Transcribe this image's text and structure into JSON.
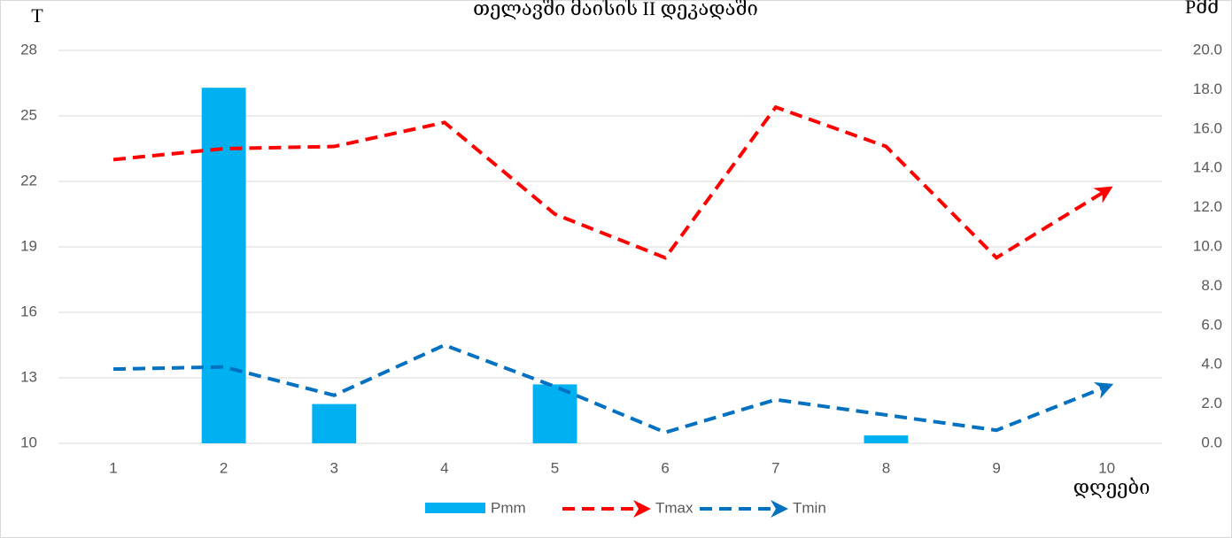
{
  "chart_data": {
    "type": "bar",
    "title": "თელავში მაისის II დეკადაში",
    "y_label": "T",
    "y2_label": "Pმმ",
    "x_label": "დღეები",
    "categories": [
      "1",
      "2",
      "3",
      "4",
      "5",
      "6",
      "7",
      "8",
      "9",
      "10"
    ],
    "series": [
      {
        "name": "Pmm",
        "type": "bar",
        "axis": "y2",
        "color": "#00b0f0",
        "values": [
          0,
          18.1,
          2.0,
          0,
          3.0,
          0,
          0,
          0.4,
          0,
          0
        ]
      },
      {
        "name": "Tmax",
        "type": "line",
        "color": "#ff0000",
        "values": [
          23.0,
          23.5,
          23.6,
          24.7,
          20.5,
          18.5,
          25.4,
          23.6,
          18.5,
          21.6
        ]
      },
      {
        "name": "Tmin",
        "type": "line",
        "color": "#0070c0",
        "values": [
          13.4,
          13.5,
          12.2,
          14.5,
          12.6,
          10.5,
          12.0,
          11.3,
          10.6,
          12.6
        ]
      }
    ],
    "ylim": [
      10,
      28
    ],
    "yticks": [
      10,
      13,
      16,
      19,
      22,
      25,
      28
    ],
    "y2lim": [
      0,
      20
    ],
    "y2ticks": [
      {
        "value": 0,
        "label": "0.0"
      },
      {
        "value": 2,
        "label": "2.0"
      },
      {
        "value": 4,
        "label": "4.0"
      },
      {
        "value": 6,
        "label": "6.0"
      },
      {
        "value": 8,
        "label": "8.0"
      },
      {
        "value": 10,
        "label": "10.0"
      },
      {
        "value": 12,
        "label": "12.0"
      },
      {
        "value": 14,
        "label": "14.0"
      },
      {
        "value": 16,
        "label": "16.0"
      },
      {
        "value": 18,
        "label": "18.0"
      },
      {
        "value": 20,
        "label": "20.0"
      }
    ],
    "grid": true,
    "legend": "bottom"
  }
}
